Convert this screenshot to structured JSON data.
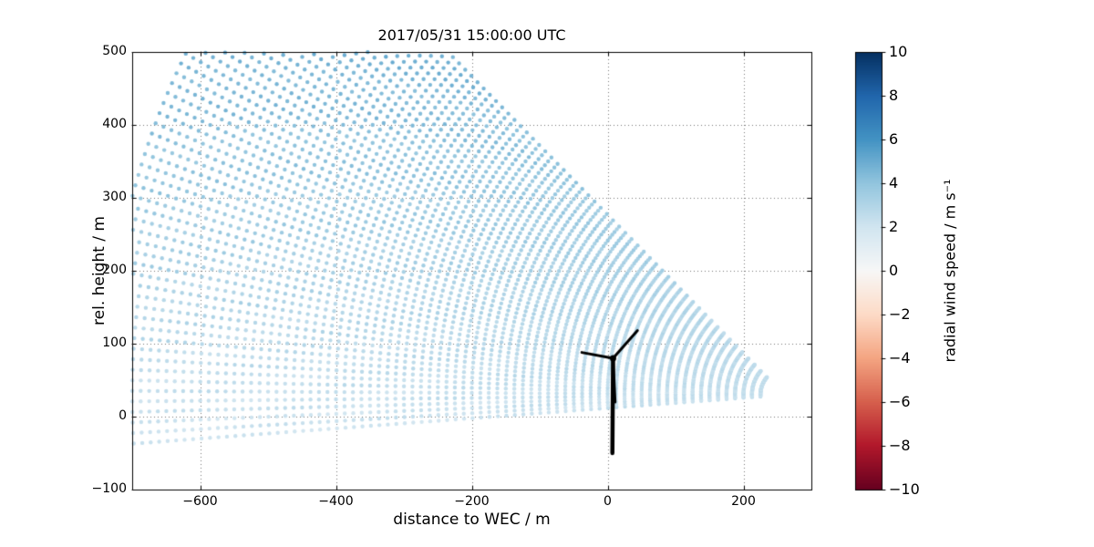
{
  "chart_data": {
    "type": "scatter",
    "title": "2017/05/31 15:00:00 UTC",
    "xlabel": "distance to WEC / m",
    "ylabel": "rel. height / m",
    "xlim": [
      -700,
      300
    ],
    "ylim": [
      -100,
      500
    ],
    "xticks": [
      -600,
      -400,
      -200,
      0,
      200
    ],
    "xtick_labels": [
      "−600",
      "−400",
      "−200",
      "0",
      "200"
    ],
    "yticks": [
      -100,
      0,
      100,
      200,
      300,
      400,
      500
    ],
    "ytick_labels": [
      "−100",
      "0",
      "100",
      "200",
      "300",
      "400",
      "500"
    ],
    "grid": true,
    "colorbar": {
      "label": "radial wind speed / m s⁻¹",
      "min": -10,
      "max": 10,
      "ticks": [
        -10,
        -8,
        -6,
        -4,
        -2,
        0,
        2,
        4,
        6,
        8,
        10
      ],
      "tick_labels": [
        "−10",
        "−8",
        "−6",
        "−4",
        "−2",
        "0",
        "2",
        "4",
        "6",
        "8",
        "10"
      ],
      "colormap": "RdBu",
      "colormap_stops": [
        {
          "t": 0.0,
          "color": "#67001f"
        },
        {
          "t": 0.1,
          "color": "#b2182b"
        },
        {
          "t": 0.2,
          "color": "#d6604d"
        },
        {
          "t": 0.3,
          "color": "#f4a582"
        },
        {
          "t": 0.4,
          "color": "#fddbc7"
        },
        {
          "t": 0.5,
          "color": "#f7f7f7"
        },
        {
          "t": 0.6,
          "color": "#d1e5f0"
        },
        {
          "t": 0.7,
          "color": "#92c5de"
        },
        {
          "t": 0.8,
          "color": "#4393c3"
        },
        {
          "t": 0.9,
          "color": "#2166ac"
        },
        {
          "t": 1.0,
          "color": "#053061"
        }
      ]
    },
    "lidar_scan": {
      "description": "fan of dotted lidar range-gate points; radial wind speed approx 1.5-5 m/s (light blue), increasing with height",
      "origin_x": 260,
      "origin_y": 30,
      "elevation_min_deg": -4,
      "elevation_max_deg": 43.5,
      "n_beams": 56,
      "range_min_m": 35,
      "range_max_m": 1000,
      "gate_spacing_m": 12.5,
      "speed_at_bottom": 1.7,
      "speed_at_top": 4.8,
      "speed_noise": 0.35,
      "dot_radius_px": 2.2
    },
    "turbine": {
      "color": "#000000",
      "tower_base": [
        7,
        -50
      ],
      "hub": [
        8,
        80
      ],
      "blade_tips": [
        [
          -38,
          88
        ],
        [
          44,
          118
        ],
        [
          11,
          20
        ]
      ]
    }
  }
}
